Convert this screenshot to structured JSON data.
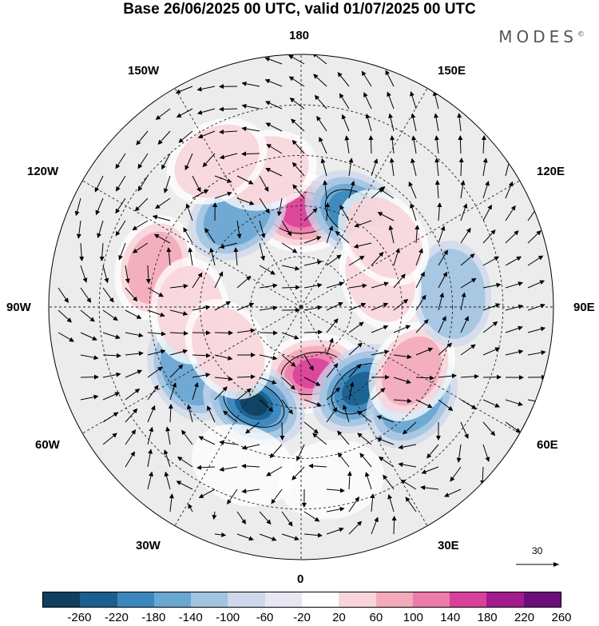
{
  "title": "Base 26/06/2025 00 UTC, valid 01/07/2025 00 UTC",
  "brand": "MODES",
  "brand_mark": "©",
  "longitude_labels": {
    "n180": "180",
    "w150": "150W",
    "e150": "150E",
    "w120": "120W",
    "e120": "120E",
    "w90": "90W",
    "e90": "90E",
    "w60": "60W",
    "e60": "60E",
    "w30": "30W",
    "e30": "30E",
    "s0": "0"
  },
  "reference_vector": "30",
  "colorbar": {
    "ticks": [
      "-260",
      "-220",
      "-180",
      "-140",
      "-100",
      "-60",
      "-20",
      "20",
      "60",
      "100",
      "140",
      "180",
      "220",
      "260"
    ],
    "colors": [
      "#0f3f5f",
      "#1a5f8f",
      "#3a86bd",
      "#6aa6d2",
      "#a2c4e2",
      "#cdd8ec",
      "#e8e6f2",
      "#ffffff",
      "#f7d5da",
      "#f3aabb",
      "#ed7cab",
      "#d8419a",
      "#a21b8c",
      "#6a0f7a"
    ]
  },
  "map": {
    "projection": "polar-stereographic-north",
    "anomalies": [
      {
        "lon": 180,
        "lat": 62,
        "value": 180
      },
      {
        "lon": 150,
        "lat": 58,
        "value": -150
      },
      {
        "lon": 215,
        "lat": 57,
        "value": -130
      },
      {
        "lon": 195,
        "lat": 48,
        "value": 60
      },
      {
        "lon": 255,
        "lat": 45,
        "value": 120
      },
      {
        "lon": 300,
        "lat": 52,
        "value": -120
      },
      {
        "lon": 272,
        "lat": 57,
        "value": 80
      },
      {
        "lon": 10,
        "lat": 70,
        "value": 210
      },
      {
        "lon": 334,
        "lat": 58,
        "value": -230
      },
      {
        "lon": 36,
        "lat": 60,
        "value": -180
      },
      {
        "lon": 50,
        "lat": 47,
        "value": -110
      },
      {
        "lon": 60,
        "lat": 52,
        "value": 100
      },
      {
        "lon": 95,
        "lat": 45,
        "value": -60
      },
      {
        "lon": 110,
        "lat": 65,
        "value": 70
      },
      {
        "lon": 130,
        "lat": 58,
        "value": 90
      },
      {
        "lon": 210,
        "lat": 40,
        "value": 60
      },
      {
        "lon": 300,
        "lat": 65,
        "value": 70
      },
      {
        "lon": 10,
        "lat": 38,
        "value": 50
      },
      {
        "lon": 340,
        "lat": 40,
        "value": 40
      }
    ]
  }
}
